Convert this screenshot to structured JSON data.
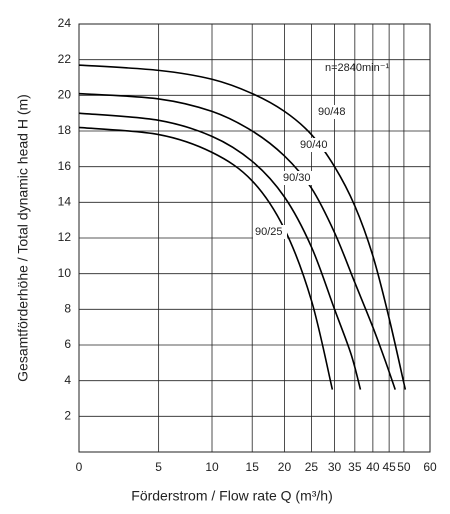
{
  "chart_data": {
    "type": "line",
    "xlabel": "Förderstrom / Flow rate    Q (m³/h)",
    "ylabel": "Gesamtförderhöhe / Total dynamic head    H (m)",
    "annotation": "n=2840min⁻¹",
    "xlim": [
      0,
      60
    ],
    "xticks": [
      0,
      5,
      10,
      15,
      20,
      25,
      30,
      35,
      40,
      45,
      50,
      60
    ],
    "ylim": [
      0,
      24
    ],
    "yticks": [
      2,
      4,
      6,
      8,
      10,
      12,
      14,
      16,
      18,
      20,
      22,
      24
    ],
    "grid": true,
    "series": [
      {
        "name": "90/48",
        "color": "#000000",
        "x": [
          0,
          5,
          10,
          15,
          20,
          25,
          30,
          35,
          40,
          45,
          50.5
        ],
        "values": [
          21.7,
          21.4,
          20.9,
          20.1,
          19.1,
          17.8,
          16,
          13.8,
          11,
          7.5,
          3.5
        ]
      },
      {
        "name": "90/40",
        "color": "#000000",
        "x": [
          0,
          5,
          10,
          15,
          20,
          25,
          30,
          35,
          40,
          44,
          47
        ],
        "values": [
          20.1,
          19.8,
          19.1,
          18,
          16.6,
          14.8,
          12.3,
          9.5,
          7,
          5,
          3.5
        ]
      },
      {
        "name": "90/30",
        "color": "#000000",
        "x": [
          0,
          5,
          10,
          15,
          20,
          25,
          30,
          34,
          36.5
        ],
        "values": [
          19,
          18.6,
          17.7,
          16.3,
          14.3,
          11.5,
          8,
          5.5,
          3.5
        ]
      },
      {
        "name": "90/25",
        "color": "#000000",
        "x": [
          0,
          5,
          10,
          15,
          20,
          25,
          29.5
        ],
        "values": [
          18.2,
          17.8,
          16.8,
          15.2,
          12.5,
          8.5,
          3.5
        ]
      }
    ]
  }
}
